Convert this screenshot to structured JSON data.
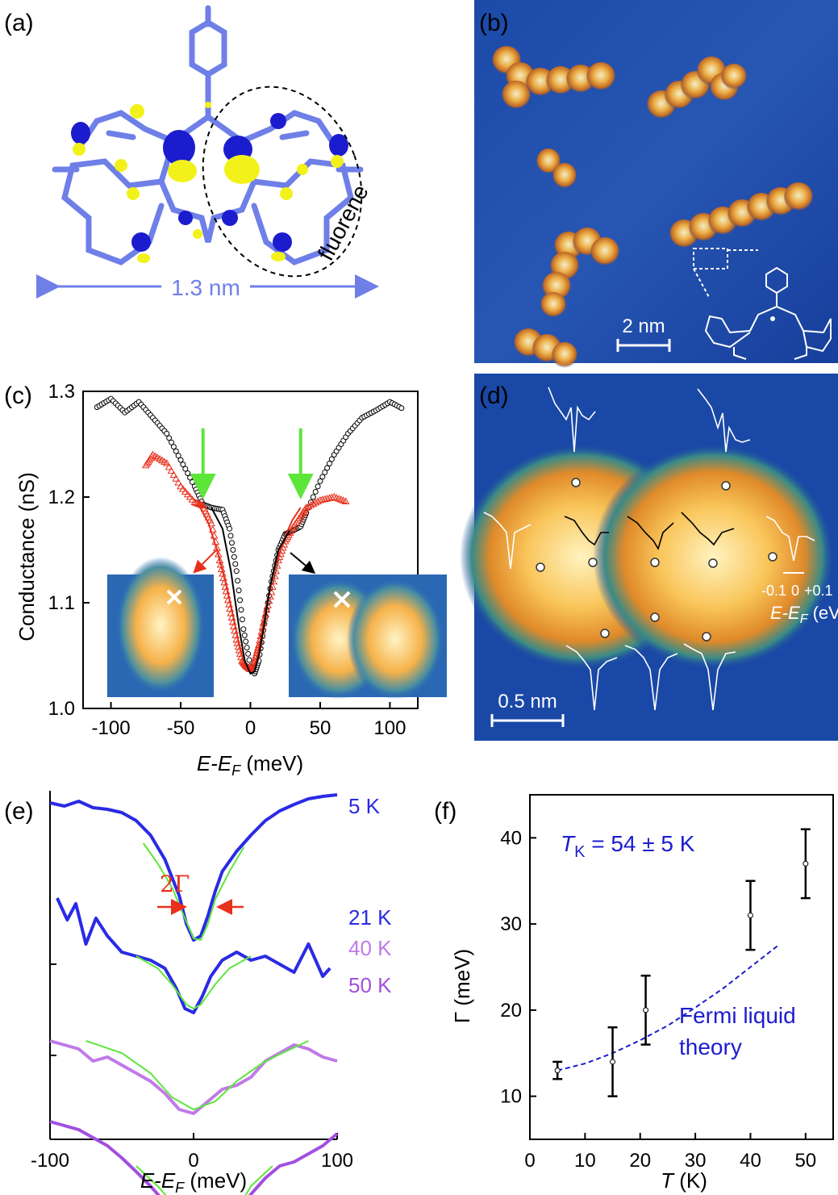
{
  "panels": {
    "a": {
      "label": "(a)",
      "annotation": "fluorene",
      "scale_text": "1.3 nm",
      "colors": {
        "molecule": "#6f7fe8",
        "orbital_blue": "#1c1ccf",
        "orbital_yellow": "#f2f21a"
      }
    },
    "b": {
      "label": "(b)",
      "scale_text": "2 nm",
      "colors": {
        "background": "#1a48a6",
        "molecule": "#f5a23a"
      }
    },
    "c": {
      "label": "(c)",
      "ylabel": "Conductance (nS)",
      "xlabel_main": "E-E",
      "xlabel_sub": "F",
      "xlabel_unit": " (meV)",
      "xlim": [
        -120,
        120
      ],
      "ylim": [
        1.0,
        1.3
      ],
      "xticks": [
        "-100",
        "-50",
        "0",
        "50",
        "100"
      ],
      "yticks": [
        "1.0",
        "1.1",
        "1.2",
        "1.3"
      ],
      "arrow_color": "#5de63a",
      "arrow_positions_mev": [
        -34,
        36
      ]
    },
    "d": {
      "label": "(d)",
      "scale_text": "0.5 nm",
      "inset_ticks": [
        "-0.1",
        "0",
        "+0.1"
      ],
      "inset_xlabel_main": "E-E",
      "inset_xlabel_sub": "F",
      "inset_xlabel_unit": " (eV)"
    },
    "e": {
      "label": "(e)",
      "xlabel_main": "E-E",
      "xlabel_sub": "F",
      "xlabel_unit": " (meV)",
      "xticks": [
        "-100",
        "0",
        "100"
      ],
      "width_label": "2Γ",
      "temperature_labels": [
        {
          "text": "5 K",
          "color": "#2a2ae6"
        },
        {
          "text": "21 K",
          "color": "#2a2ae6"
        },
        {
          "text": "40 K",
          "color": "#c07ae8"
        },
        {
          "text": "50 K",
          "color": "#a24fe0"
        }
      ]
    },
    "f": {
      "label": "(f)",
      "annotation_main": "T",
      "annotation_sub": "K",
      "annotation_rest": " = 54 ± 5 K",
      "theory_line1": "Fermi liquid",
      "theory_line2": "theory",
      "ylabel": "Γ (meV)",
      "xlabel_main": "T",
      "xlabel_unit": " (K)",
      "xticks": [
        "0",
        "10",
        "20",
        "30",
        "40",
        "50"
      ],
      "yticks": [
        "10",
        "20",
        "30",
        "40"
      ]
    }
  },
  "chart_data": [
    {
      "type": "line",
      "panel": "c",
      "xlabel": "E-EF (meV)",
      "ylabel": "Conductance (nS)",
      "xlim": [
        -120,
        120
      ],
      "ylim": [
        1.0,
        1.3
      ],
      "series": [
        {
          "color": "#000000",
          "marker": "circle",
          "x": [
            -110,
            -100,
            -90,
            -80,
            -70,
            -60,
            -50,
            -40,
            -34,
            -28,
            -20,
            -15,
            -10,
            -5,
            0,
            3,
            6,
            10,
            15,
            20,
            25,
            30,
            36,
            40,
            50,
            60,
            70,
            80,
            90,
            100,
            110
          ],
          "y": [
            1.285,
            1.293,
            1.28,
            1.29,
            1.275,
            1.26,
            1.235,
            1.21,
            1.193,
            1.19,
            1.188,
            1.17,
            1.13,
            1.075,
            1.04,
            1.033,
            1.045,
            1.08,
            1.12,
            1.15,
            1.165,
            1.168,
            1.172,
            1.185,
            1.215,
            1.24,
            1.26,
            1.275,
            1.282,
            1.29,
            1.283
          ]
        },
        {
          "color": "#e8301c",
          "marker": "triangle",
          "x": [
            -75,
            -70,
            -60,
            -50,
            -40,
            -34,
            -28,
            -22,
            -18,
            -14,
            -10,
            -6,
            -3,
            0,
            3,
            6,
            10,
            15,
            20,
            25,
            30,
            36,
            40,
            50,
            60,
            70
          ],
          "y": [
            1.23,
            1.24,
            1.232,
            1.21,
            1.195,
            1.192,
            1.175,
            1.14,
            1.115,
            1.09,
            1.065,
            1.045,
            1.04,
            1.037,
            1.045,
            1.06,
            1.085,
            1.11,
            1.14,
            1.158,
            1.17,
            1.182,
            1.19,
            1.197,
            1.2,
            1.195
          ]
        },
        {
          "color": "#e8301c",
          "marker": "none",
          "role": "fit",
          "x": [
            -36,
            -30,
            -24,
            -18,
            -12,
            -8,
            -4,
            0,
            4,
            8,
            12,
            18,
            24,
            30,
            36
          ],
          "y": [
            1.19,
            1.175,
            1.15,
            1.12,
            1.085,
            1.06,
            1.04,
            1.035,
            1.045,
            1.07,
            1.1,
            1.135,
            1.16,
            1.178,
            1.19
          ]
        },
        {
          "color": "#000000",
          "marker": "none",
          "role": "fit",
          "x": [
            -28,
            -20,
            -14,
            -8,
            -4,
            0,
            3,
            6,
            10,
            14,
            20,
            28
          ],
          "y": [
            1.19,
            1.17,
            1.13,
            1.075,
            1.045,
            1.033,
            1.035,
            1.05,
            1.08,
            1.115,
            1.15,
            1.168
          ]
        }
      ]
    },
    {
      "type": "line",
      "panel": "e",
      "xlabel": "E-EF (meV)",
      "xlim": [
        -100,
        100
      ],
      "series": [
        {
          "name": "5 K",
          "color": "#2a2ae6",
          "x": [
            -100,
            -90,
            -80,
            -70,
            -60,
            -50,
            -40,
            -30,
            -20,
            -10,
            -5,
            0,
            5,
            10,
            15,
            20,
            30,
            40,
            50,
            60,
            70,
            80,
            90,
            100
          ],
          "y": [
            0.0,
            -4,
            2,
            -6,
            -8,
            -12,
            -22,
            -40,
            -70,
            -115,
            -150,
            -170,
            -165,
            -140,
            -110,
            -85,
            -60,
            -40,
            -22,
            -10,
            -2,
            5,
            8,
            10
          ]
        },
        {
          "name": "21 K",
          "color": "#2a2ae6",
          "x": [
            -95,
            -88,
            -82,
            -75,
            -68,
            -60,
            -50,
            -40,
            -30,
            -20,
            -12,
            -6,
            0,
            6,
            12,
            20,
            30,
            40,
            50,
            60,
            70,
            80,
            90,
            95
          ],
          "y": [
            -63,
            -90,
            -70,
            -120,
            -88,
            -110,
            -130,
            -135,
            -140,
            -150,
            -175,
            -200,
            -205,
            -185,
            -160,
            -140,
            -130,
            -140,
            -135,
            -145,
            -155,
            -120,
            -160,
            -150
          ]
        },
        {
          "name": "40 K",
          "color": "#c07ae8",
          "x": [
            -100,
            -90,
            -80,
            -70,
            -60,
            -50,
            -40,
            -30,
            -20,
            -10,
            0,
            10,
            20,
            30,
            40,
            50,
            60,
            70,
            80,
            90,
            100
          ],
          "y": [
            -150,
            -155,
            -160,
            -175,
            -170,
            -180,
            -190,
            -200,
            -215,
            -235,
            -240,
            -225,
            -210,
            -205,
            -195,
            -175,
            -165,
            -155,
            -160,
            -170,
            -175
          ]
        },
        {
          "name": "50 K",
          "color": "#a24fe0",
          "x": [
            -100,
            -90,
            -80,
            -70,
            -60,
            -50,
            -40,
            -30,
            -20,
            -10,
            0,
            10,
            20,
            30,
            40,
            50,
            60,
            70,
            80,
            90,
            100
          ],
          "y": [
            -200,
            -205,
            -210,
            -220,
            -230,
            -245,
            -262,
            -280,
            -300,
            -318,
            -330,
            -340,
            -335,
            -315,
            -290,
            -270,
            -255,
            -250,
            -240,
            -230,
            -215
          ]
        }
      ],
      "fits": [
        {
          "for": "5 K",
          "x": [
            -35,
            -25,
            -15,
            -8,
            0,
            5,
            10,
            15,
            25,
            35
          ],
          "y": [
            -50,
            -75,
            -105,
            -135,
            -168,
            -170,
            -150,
            -120,
            -85,
            -55
          ]
        },
        {
          "for": "21 K",
          "x": [
            -40,
            -25,
            -15,
            -5,
            0,
            5,
            15,
            25,
            40
          ],
          "y": [
            -135,
            -150,
            -170,
            -195,
            -200,
            -195,
            -170,
            -150,
            -135
          ]
        },
        {
          "for": "40 K",
          "x": [
            -75,
            -50,
            -30,
            -15,
            0,
            15,
            30,
            50,
            80
          ],
          "y": [
            -150,
            -165,
            -190,
            -220,
            -235,
            -225,
            -200,
            -175,
            -150
          ]
        },
        {
          "for": "50 K",
          "x": [
            -40,
            -25,
            -10,
            0,
            10,
            20,
            30,
            40,
            55
          ],
          "y": [
            -255,
            -280,
            -310,
            -325,
            -335,
            -330,
            -310,
            -280,
            -255
          ]
        }
      ]
    },
    {
      "type": "scatter",
      "panel": "f",
      "xlabel": "T (K)",
      "ylabel": "Γ (meV)",
      "xlim": [
        0,
        55
      ],
      "ylim": [
        5,
        45
      ],
      "points": [
        {
          "x": 5,
          "y": 13,
          "err": 1
        },
        {
          "x": 15,
          "y": 14,
          "err": 4
        },
        {
          "x": 21,
          "y": 20,
          "err": 4
        },
        {
          "x": 40,
          "y": 31,
          "err": 4
        },
        {
          "x": 50,
          "y": 37,
          "err": 4
        }
      ],
      "theory_curve": {
        "x": [
          5,
          10,
          15,
          20,
          25,
          30,
          35,
          40,
          45
        ],
        "y": [
          13.0,
          13.8,
          15.0,
          16.5,
          18.2,
          20.3,
          22.5,
          25.0,
          27.5
        ]
      }
    }
  ]
}
